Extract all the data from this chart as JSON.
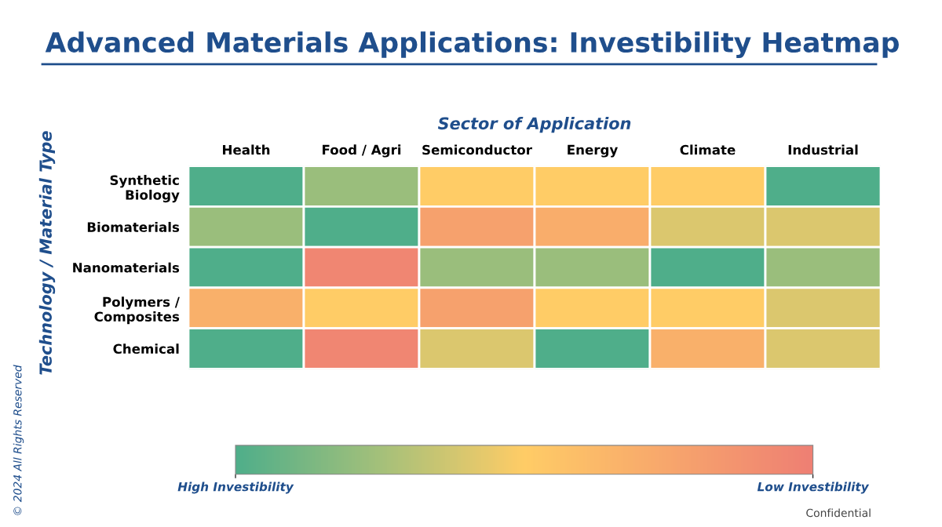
{
  "chart_data": {
    "type": "heatmap",
    "title": "Advanced Materials Applications: Investibility Heatmap",
    "xlabel": "Sector of Application",
    "ylabel": "Technology / Material Type",
    "categories": [
      "Health",
      "Food / Agri",
      "Semiconductor",
      "Energy",
      "Climate",
      "Industrial"
    ],
    "y_categories": [
      "Synthetic\nBiology",
      "Biomaterials",
      "Nanomaterials",
      "Polymers /\nComposites",
      "Chemical"
    ],
    "cells": [
      [
        0,
        0.22,
        0.5,
        0.5,
        0.5,
        0
      ],
      [
        0.22,
        0,
        0.78,
        0.7,
        0.4,
        0.4
      ],
      [
        0,
        0.95,
        0.22,
        0.22,
        0,
        0.22
      ],
      [
        0.68,
        0.5,
        0.78,
        0.5,
        0.5,
        0.4
      ],
      [
        0,
        0.95,
        0.4,
        0,
        0.68,
        0.4
      ]
    ],
    "colors": [
      "#4fae8a",
      "#a4c07a",
      "#ffcc66",
      "#f7a66c",
      "#ee7f73"
    ],
    "clim": [
      0,
      1
    ],
    "cticks": [
      {
        "value": 0,
        "label": "High Investibility"
      },
      {
        "value": 1,
        "label": "Low Investibility"
      }
    ],
    "annotations": [
      "© 2024 All Rights Reserved",
      "Confidential"
    ]
  }
}
